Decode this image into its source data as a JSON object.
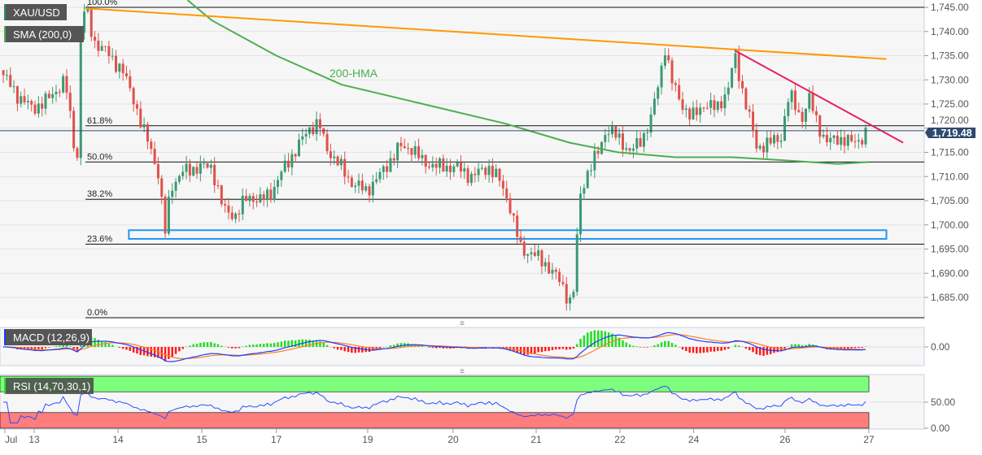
{
  "instrument": {
    "symbol": "XAU/USD",
    "indicator": "SMA (200,0)",
    "last_price": "1,719.48"
  },
  "indicators": {
    "macd": "MACD (12,26,9)",
    "rsi": "RSI (14,70,30,1)",
    "hma_label": "200-HMA"
  },
  "colors": {
    "up": "#3a9a72",
    "down": "#e0514a",
    "hma": "#4caf50",
    "trend_orange": "#ff9800",
    "trend_pink": "#e91e63",
    "support_box": "#2196f3",
    "macd_line": "#1e3cff",
    "signal_line": "#ff7f27",
    "rsi_line": "#2a4dff",
    "overbought": "#7dff7d",
    "oversold": "#ff7d7d"
  },
  "chart_data": {
    "type": "candlestick",
    "x_unit": "days since Jul 13",
    "x_labels": [
      {
        "t": -0.35,
        "label": "Jul"
      },
      {
        "t": 0,
        "label": "13"
      },
      {
        "t": 1,
        "label": "14"
      },
      {
        "t": 2,
        "label": "15"
      },
      {
        "t": 2.89,
        "label": "17"
      },
      {
        "t": 3.98,
        "label": "19"
      },
      {
        "t": 5,
        "label": "20"
      },
      {
        "t": 5.99,
        "label": "21"
      },
      {
        "t": 6.99,
        "label": "22"
      },
      {
        "t": 7.87,
        "label": "24"
      },
      {
        "t": 8.96,
        "label": "26"
      },
      {
        "t": 9.96,
        "label": "27"
      }
    ],
    "y_ticks": [
      "1,745.00",
      "1,740.00",
      "1,735.00",
      "1,730.00",
      "1,725.00",
      "1,720.00",
      "1,715.00",
      "1,710.00",
      "1,705.00",
      "1,700.00",
      "1,695.00",
      "1,690.00",
      "1,685.00"
    ],
    "y_tick_values": [
      1745,
      1740,
      1735,
      1730,
      1725,
      1720,
      1715,
      1710,
      1705,
      1700,
      1695,
      1690,
      1685
    ],
    "ylim": [
      1680.5,
      1746.5
    ],
    "price_path": [
      [
        -0.41,
        1732
      ],
      [
        -0.21,
        1727
      ],
      [
        -0.02,
        1724
      ],
      [
        0.17,
        1726
      ],
      [
        0.37,
        1730
      ],
      [
        0.51,
        1712
      ],
      [
        0.56,
        1742
      ],
      [
        0.61,
        1745
      ],
      [
        0.71,
        1738
      ],
      [
        0.85,
        1736
      ],
      [
        1.05,
        1732
      ],
      [
        1.19,
        1726
      ],
      [
        1.29,
        1720
      ],
      [
        1.39,
        1716
      ],
      [
        1.49,
        1710
      ],
      [
        1.56,
        1698
      ],
      [
        1.63,
        1708
      ],
      [
        1.78,
        1711
      ],
      [
        1.97,
        1712
      ],
      [
        2.12,
        1712
      ],
      [
        2.26,
        1703
      ],
      [
        2.41,
        1702
      ],
      [
        2.55,
        1706
      ],
      [
        2.7,
        1705
      ],
      [
        2.84,
        1707
      ],
      [
        2.99,
        1712
      ],
      [
        3.14,
        1716
      ],
      [
        3.28,
        1720
      ],
      [
        3.4,
        1721
      ],
      [
        3.48,
        1716
      ],
      [
        3.62,
        1713
      ],
      [
        3.77,
        1709
      ],
      [
        3.96,
        1707
      ],
      [
        4.16,
        1711
      ],
      [
        4.35,
        1716
      ],
      [
        4.5,
        1716
      ],
      [
        4.64,
        1713
      ],
      [
        4.83,
        1712
      ],
      [
        5.03,
        1712
      ],
      [
        5.22,
        1710
      ],
      [
        5.42,
        1712
      ],
      [
        5.56,
        1709
      ],
      [
        5.66,
        1705
      ],
      [
        5.73,
        1700
      ],
      [
        5.81,
        1695
      ],
      [
        5.95,
        1694
      ],
      [
        6.1,
        1692
      ],
      [
        6.29,
        1688
      ],
      [
        6.39,
        1684
      ],
      [
        6.45,
        1687
      ],
      [
        6.5,
        1705
      ],
      [
        6.58,
        1710
      ],
      [
        6.73,
        1715
      ],
      [
        6.83,
        1720
      ],
      [
        6.97,
        1718
      ],
      [
        7.12,
        1715
      ],
      [
        7.26,
        1718
      ],
      [
        7.36,
        1722
      ],
      [
        7.46,
        1730
      ],
      [
        7.53,
        1737
      ],
      [
        7.6,
        1730
      ],
      [
        7.7,
        1726
      ],
      [
        7.84,
        1722
      ],
      [
        7.99,
        1725
      ],
      [
        8.14,
        1724
      ],
      [
        8.28,
        1728
      ],
      [
        8.36,
        1735
      ],
      [
        8.45,
        1728
      ],
      [
        8.54,
        1722
      ],
      [
        8.62,
        1716
      ],
      [
        8.77,
        1717
      ],
      [
        8.91,
        1718
      ],
      [
        9.01,
        1727
      ],
      [
        9.16,
        1722
      ],
      [
        9.25,
        1726
      ],
      [
        9.35,
        1721
      ],
      [
        9.45,
        1717
      ],
      [
        9.59,
        1718
      ],
      [
        9.74,
        1717
      ],
      [
        9.88,
        1718
      ],
      [
        9.96,
        1719.48
      ]
    ],
    "hma_200": [
      [
        1.83,
        1746.5
      ],
      [
        2.12,
        1742.3
      ],
      [
        2.89,
        1735
      ],
      [
        3.67,
        1729
      ],
      [
        4.64,
        1725
      ],
      [
        5.61,
        1721
      ],
      [
        6.39,
        1717
      ],
      [
        6.97,
        1715
      ],
      [
        7.65,
        1714
      ],
      [
        8.33,
        1714
      ],
      [
        8.91,
        1713.4
      ],
      [
        9.59,
        1712.6
      ],
      [
        9.96,
        1713
      ]
    ],
    "trendlines": {
      "orange": [
        [
          0.61,
          1744.8
        ],
        [
          10.17,
          1734.3
        ]
      ],
      "pink": [
        [
          8.36,
          1736.1
        ],
        [
          10.37,
          1717
        ]
      ]
    },
    "support_zone": {
      "t": [
        1.13,
        10.17
      ],
      "price": [
        1697.1,
        1698.9
      ]
    },
    "fibonacci": [
      {
        "label": "100.0%",
        "price": 1745
      },
      {
        "label": "61.8%",
        "price": 1720.5
      },
      {
        "label": "50.0%",
        "price": 1713
      },
      {
        "label": "38.2%",
        "price": 1705.3
      },
      {
        "label": "23.6%",
        "price": 1696
      },
      {
        "label": "0.0%",
        "price": 1680.8
      }
    ],
    "macd_axis": "0.00",
    "rsi_axis": [
      "50.00",
      "0.00"
    ],
    "rsi_levels": {
      "overbought": 70,
      "oversold": 30
    }
  }
}
